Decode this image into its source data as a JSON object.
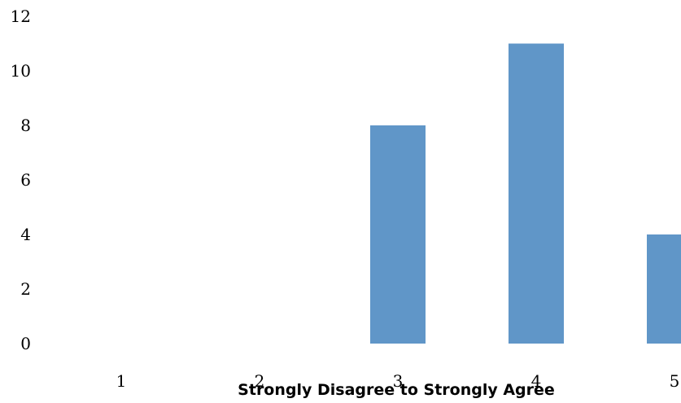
{
  "chart_data": {
    "type": "bar",
    "categories": [
      "1",
      "2",
      "3",
      "4",
      "5"
    ],
    "values": [
      0,
      0,
      8,
      11,
      4
    ],
    "title": "",
    "xlabel": "Strongly Disagree to Strongly Agree",
    "ylabel": "",
    "ylim": [
      0,
      12
    ],
    "yticks": [
      "0",
      "2",
      "4",
      "6",
      "8",
      "10",
      "12"
    ],
    "grid": false,
    "legend": "none",
    "bar_color": "#6096C8"
  }
}
